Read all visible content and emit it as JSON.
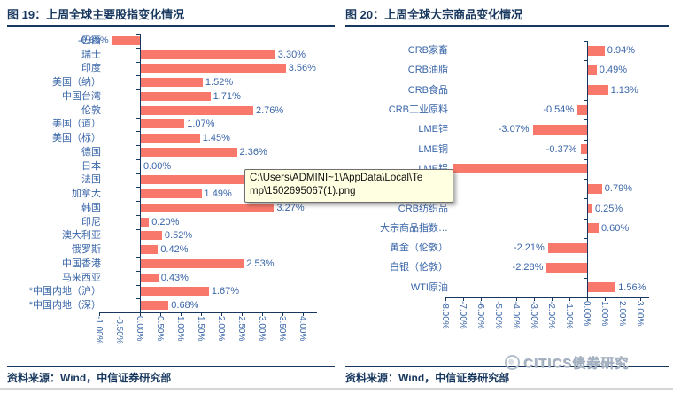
{
  "colors": {
    "bar": "#F8796C",
    "label_blue": "#3A66A8",
    "axis_navy": "#17375E",
    "tooltip_bg": "#FFFFE1",
    "logo_gray": "#A7B3C2"
  },
  "left_chart": {
    "title": "图 19：上周全球主要股指变化情况",
    "source": "资料来源：Wind，中信证券研究部",
    "chart_data": {
      "type": "bar",
      "orientation": "horizontal",
      "title": "上周全球主要股指变化情况",
      "categories": [
        "巴西",
        "瑞士",
        "印度",
        "美国（纳）",
        "中国台湾",
        "伦敦",
        "美国（道）",
        "美国（标）",
        "德国",
        "日本",
        "法国",
        "加拿大",
        "韩国",
        "印尼",
        "澳大利亚",
        "俄罗斯",
        "中国香港",
        "马来西亚",
        "*中国内地（沪）",
        "*中国内地（深）"
      ],
      "values": [
        -0.68,
        3.3,
        3.56,
        1.52,
        1.71,
        2.76,
        1.07,
        1.45,
        2.36,
        0.0,
        2.7,
        1.49,
        3.27,
        0.2,
        0.52,
        0.42,
        2.53,
        0.43,
        1.67,
        0.68
      ],
      "value_labels": [
        "-0.68%",
        "3.30%",
        "3.56%",
        "1.52%",
        "1.71%",
        "2.76%",
        "1.07%",
        "1.45%",
        "2.36%",
        "0.00%",
        "",
        "1.49%",
        "3.27%",
        "0.20%",
        "0.52%",
        "0.42%",
        "2.53%",
        "0.43%",
        "1.67%",
        "0.68%"
      ],
      "xlim": [
        -1.0,
        4.0
      ],
      "xtick_step": 0.5,
      "xtick_labels": [
        "-1.00%",
        "-0.50%",
        "0.00%",
        "0.50%",
        "1.00%",
        "1.50%",
        "2.00%",
        "2.50%",
        "3.00%",
        "3.50%",
        "4.00%"
      ],
      "grid": false,
      "legend": "none",
      "notes": "法国 value label is hidden behind the file-path tooltip; its bar length (~2.70%) is estimated from pixels. 巴西 value label overlaps its category label."
    }
  },
  "right_chart": {
    "title": "图 20：上周全球大宗商品变化情况",
    "source": "资料来源：Wind，中信证券研究部",
    "chart_data": {
      "type": "bar",
      "orientation": "horizontal",
      "title": "上周全球大宗商品变化情况",
      "categories": [
        "CRB家畜",
        "CRB油脂",
        "CRB食品",
        "CRB工业原料",
        "LME锌",
        "LME铜",
        "LME铝",
        "",
        "CRB纺织品",
        "大宗商品指数…",
        "黄金（伦敦）",
        "白银（伦敦）",
        "WTI原油"
      ],
      "values": [
        0.94,
        0.49,
        1.13,
        -0.54,
        -3.07,
        -0.37,
        -7.55,
        0.79,
        0.25,
        0.6,
        -2.21,
        -2.28,
        1.56
      ],
      "value_labels": [
        "0.94%",
        "0.49%",
        "1.13%",
        "-0.54%",
        "-3.07%",
        "-0.37%",
        "",
        "0.79%",
        "0.25%",
        "0.60%",
        "-2.21%",
        "-2.28%",
        "1.56%"
      ],
      "xlim": [
        -8.0,
        3.0
      ],
      "xtick_step": 1.0,
      "xtick_labels": [
        "-8.00%",
        "-7.00%",
        "-6.00%",
        "-5.00%",
        "-4.00%",
        "-3.00%",
        "-2.00%",
        "-1.00%",
        "0.00%",
        "1.00%",
        "2.00%",
        "3.00%"
      ],
      "grid": false,
      "legend": "none",
      "notes": "Category of the 0.79% row is hidden behind the file-path tooltip; LME铝 value label is hidden, bar length (~-7.55%) estimated from pixels."
    }
  },
  "tooltip": {
    "line1": "C:\\Users\\ADMINI~1\\AppData\\Local\\Te",
    "line2": "mp\\1502695067(1).png"
  },
  "logo": {
    "text": "CITICS债券研究"
  }
}
